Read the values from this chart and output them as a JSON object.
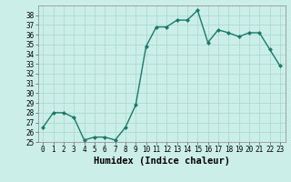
{
  "x": [
    0,
    1,
    2,
    3,
    4,
    5,
    6,
    7,
    8,
    9,
    10,
    11,
    12,
    13,
    14,
    15,
    16,
    17,
    18,
    19,
    20,
    21,
    22,
    23
  ],
  "y": [
    26.5,
    28.0,
    28.0,
    27.5,
    25.2,
    25.5,
    25.5,
    25.2,
    26.5,
    28.8,
    34.8,
    36.8,
    36.8,
    37.5,
    37.5,
    38.5,
    35.2,
    36.5,
    36.2,
    35.8,
    36.2,
    36.2,
    34.5,
    32.8
  ],
  "line_color": "#1a7a6a",
  "marker": "D",
  "marker_size": 2.0,
  "bg_color": "#cceee8",
  "grid_color": "#aaddcc",
  "xlabel": "Humidex (Indice chaleur)",
  "ylim": [
    25,
    39
  ],
  "xlim": [
    -0.5,
    23.5
  ],
  "yticks": [
    25,
    26,
    27,
    28,
    29,
    30,
    31,
    32,
    33,
    34,
    35,
    36,
    37,
    38
  ],
  "xticks": [
    0,
    1,
    2,
    3,
    4,
    5,
    6,
    7,
    8,
    9,
    10,
    11,
    12,
    13,
    14,
    15,
    16,
    17,
    18,
    19,
    20,
    21,
    22,
    23
  ],
  "tick_fontsize": 5.5,
  "xlabel_fontsize": 7.5,
  "line_width": 1.0
}
